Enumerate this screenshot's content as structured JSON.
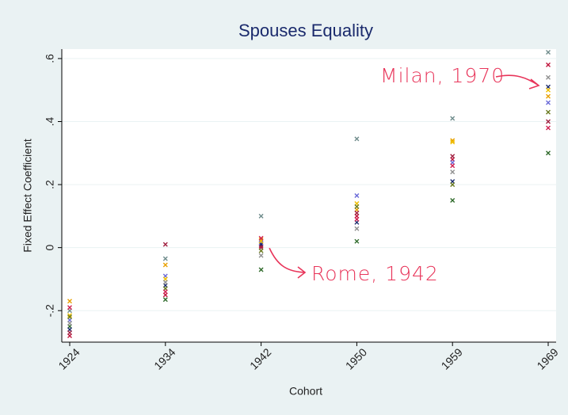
{
  "chart_data": {
    "type": "scatter",
    "title": "Spouses Equality",
    "x_label": "Cohort",
    "y_label": "Fixed Effect Coefficient",
    "categories": [
      "1924",
      "1934",
      "1942",
      "1950",
      "1959",
      "1969"
    ],
    "ylim": [
      -0.3,
      0.63
    ],
    "yticks": [
      {
        "value": -0.2,
        "label": "-.2"
      },
      0,
      {
        "value": 0.2,
        "label": ".2"
      },
      {
        "value": 0.4,
        "label": ".4"
      },
      {
        "value": 0.6,
        "label": ".6"
      }
    ],
    "grid": true,
    "series": [
      {
        "color": "#e8a000",
        "values": [
          -0.17,
          -0.055,
          0.025,
          0.12,
          0.34,
          0.48
        ]
      },
      {
        "color": "#c0143c",
        "values": [
          -0.28,
          -0.15,
          0.005,
          0.1,
          0.28,
          0.58
        ]
      },
      {
        "color": "#2e6a2a",
        "values": [
          -0.25,
          -0.165,
          -0.07,
          0.02,
          0.15,
          0.3
        ]
      },
      {
        "color": "#6f8c8c",
        "values": [
          -0.2,
          -0.035,
          0.1,
          0.345,
          0.41,
          0.62
        ]
      },
      {
        "color": "#6a6ad8",
        "values": [
          -0.23,
          -0.09,
          0.015,
          0.165,
          0.27,
          0.46
        ]
      },
      {
        "color": "#1a2a6c",
        "values": [
          -0.26,
          -0.12,
          0.01,
          0.08,
          0.21,
          0.51
        ]
      },
      {
        "color": "#f0c000",
        "values": [
          -0.215,
          -0.1,
          0.02,
          0.14,
          0.335,
          0.5
        ]
      },
      {
        "color": "#909090",
        "values": [
          -0.24,
          -0.11,
          -0.025,
          0.06,
          0.24,
          0.54
        ]
      },
      {
        "color": "#a02040",
        "values": [
          -0.27,
          0.01,
          0.0,
          0.11,
          0.29,
          0.4
        ]
      },
      {
        "color": "#6a7a20",
        "values": [
          -0.22,
          -0.13,
          -0.01,
          0.13,
          0.2,
          0.43
        ]
      },
      {
        "color": "#d02050",
        "values": [
          -0.19,
          -0.14,
          0.03,
          0.09,
          0.26,
          0.38
        ]
      }
    ],
    "annotations": [
      "Milan, 1970",
      "Rome, 1942"
    ]
  }
}
